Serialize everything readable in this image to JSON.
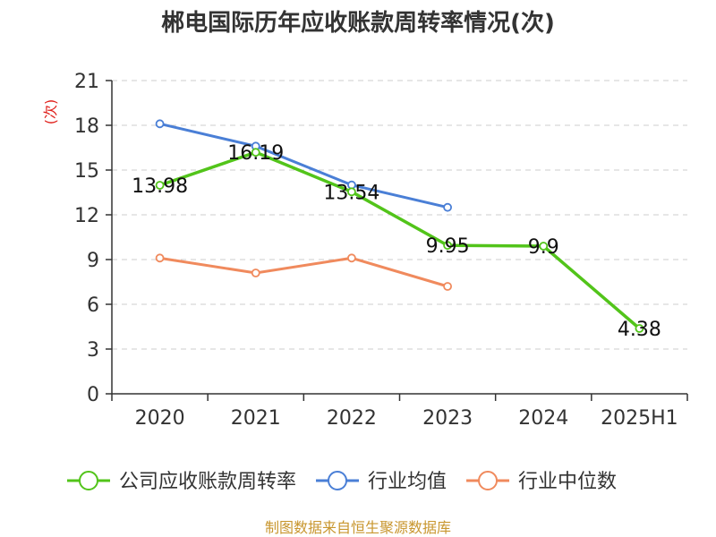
{
  "chart_data": {
    "type": "line",
    "title": "郴电国际历年应收账款周转率情况(次)",
    "ylabel": "(次)",
    "categories": [
      "2020",
      "2021",
      "2022",
      "2023",
      "2024",
      "2025H1"
    ],
    "y_ticks": [
      0,
      3,
      6,
      9,
      12,
      15,
      18,
      21
    ],
    "ylim": [
      0,
      21
    ],
    "grid": true,
    "legend_position": "bottom",
    "series": [
      {
        "name": "公司应收账款周转率",
        "color": "#52c41a",
        "values": [
          13.98,
          16.19,
          13.54,
          9.95,
          9.9,
          4.38
        ],
        "labels": [
          "13.98",
          "16.19",
          "13.54",
          "9.95",
          "9.9",
          "4.38"
        ]
      },
      {
        "name": "行业均值",
        "color": "#4a7fd6",
        "values": [
          18.1,
          16.6,
          14.0,
          12.5,
          null,
          null
        ]
      },
      {
        "name": "行业中位数",
        "color": "#f08a5d",
        "values": [
          9.1,
          8.1,
          9.1,
          7.2,
          null,
          null
        ]
      }
    ],
    "source": "制图数据来自恒生聚源数据库"
  }
}
